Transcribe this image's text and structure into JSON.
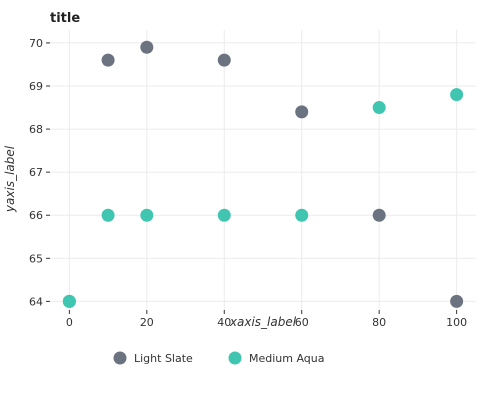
{
  "chart_data": {
    "type": "scatter",
    "title": "title",
    "xlabel": "xaxis_label",
    "ylabel": "yaxis_label",
    "xlim": [
      -5,
      105
    ],
    "ylim": [
      63.8,
      70.3
    ],
    "x_ticks": [
      0,
      20,
      40,
      60,
      80,
      100
    ],
    "y_ticks": [
      64,
      65,
      66,
      67,
      68,
      69,
      70
    ],
    "grid": true,
    "legend_position": "bottom",
    "series": [
      {
        "name": "Light Slate",
        "color": "#6b7280",
        "points": [
          [
            0,
            64.0
          ],
          [
            10,
            69.6
          ],
          [
            20,
            69.9
          ],
          [
            40,
            69.6
          ],
          [
            60,
            68.4
          ],
          [
            80,
            66.0
          ],
          [
            100,
            64.0
          ]
        ]
      },
      {
        "name": "Medium Aqua",
        "color": "#40c5b0",
        "points": [
          [
            0,
            64.0
          ],
          [
            10,
            66.0
          ],
          [
            20,
            66.0
          ],
          [
            40,
            66.0
          ],
          [
            60,
            66.0
          ],
          [
            80,
            68.5
          ],
          [
            100,
            68.8
          ]
        ]
      }
    ]
  }
}
